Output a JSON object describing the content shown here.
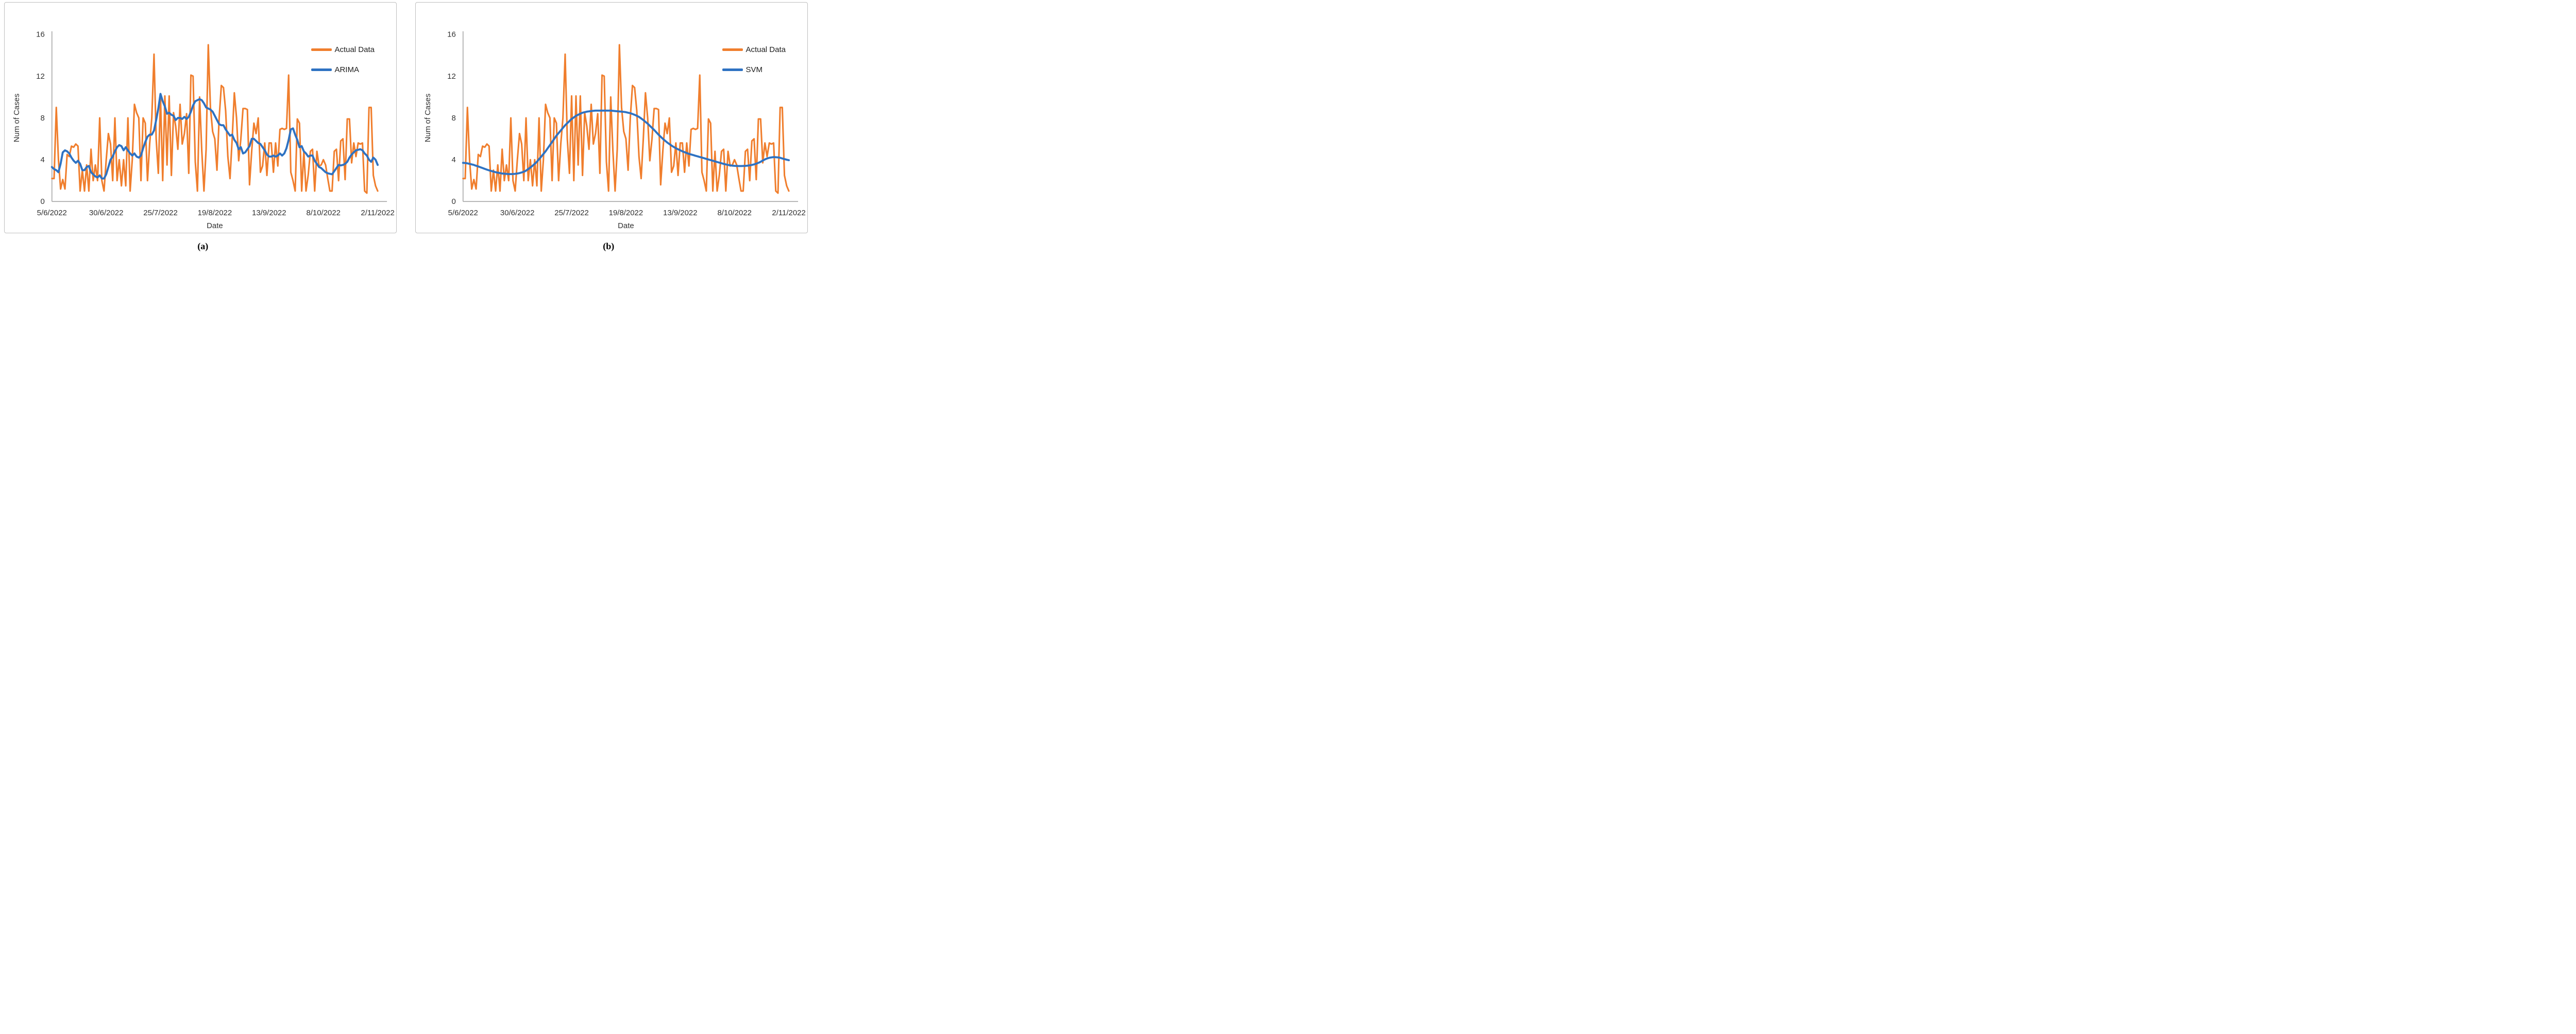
{
  "page": {
    "background": "#FFFFFF"
  },
  "colors": {
    "actual_line": "#F07E2D",
    "model_line": "#2E72C2",
    "axis_line": "#A6A6A6",
    "tick_text": "#303030",
    "panel_border": "#BFBFBF"
  },
  "captions": {
    "a": "(a)",
    "b": "(b)"
  },
  "chart_data": [
    {
      "type": "line",
      "panel": "a",
      "title": "",
      "xlabel": "Date",
      "ylabel": "Num of Cases",
      "ylim": [
        0,
        16
      ],
      "yticks": [
        0,
        4,
        8,
        12,
        16
      ],
      "xtick_days": [
        0,
        25,
        50,
        75,
        100,
        125,
        150
      ],
      "xtick_labels": [
        "5/6/2022",
        "30/6/2022",
        "25/7/2022",
        "19/8/2022",
        "13/9/2022",
        "8/10/2022",
        "2/11/2022"
      ],
      "x_description": "daily number of cases, 5/6/2022 to 2/11/2022 (151 days)",
      "grid": false,
      "legend_position": "top-right",
      "series": [
        {
          "name": "Actual Data",
          "color": "#F07E2D",
          "values": [
            2.2,
            2.2,
            9,
            4,
            1.2,
            2.1,
            1.2,
            4.5,
            4.3,
            5.3,
            5.2,
            5.5,
            5.3,
            1,
            3,
            1,
            3.5,
            1,
            5,
            2,
            3.5,
            2,
            8,
            2,
            1,
            4,
            6.5,
            5.5,
            2,
            8,
            2,
            4,
            1.5,
            4,
            1.5,
            8,
            1,
            4,
            9.3,
            8.5,
            8,
            2,
            8,
            7.5,
            2,
            5.5,
            8,
            14.1,
            6,
            2.7,
            10.1,
            2,
            10.1,
            3.5,
            10.1,
            2.5,
            8.5,
            7.2,
            5,
            9.3,
            5.5,
            6.5,
            8.4,
            2.7,
            12.1,
            12,
            3.8,
            1,
            10,
            4.9,
            1,
            5,
            15,
            9,
            6.7,
            6,
            3,
            8,
            11.1,
            10.9,
            8.7,
            4.3,
            2.2,
            6,
            10.4,
            8,
            3.9,
            6,
            8.9,
            8.9,
            8.8,
            1.6,
            4.9,
            7.5,
            6.5,
            8,
            2.8,
            3.4,
            5.6,
            2.5,
            5.6,
            5.6,
            2.8,
            5.6,
            3.4,
            6.9,
            7,
            6.9,
            7,
            12.1,
            2.8,
            2,
            1,
            7.9,
            7.5,
            1,
            4.8,
            1,
            2.5,
            4.8,
            5,
            1,
            4.8,
            3.4,
            3.5,
            4,
            3.5,
            2.2,
            1,
            1,
            4.8,
            5,
            2,
            5.8,
            6,
            2.1,
            7.9,
            7.9,
            3.7,
            5.6,
            4.3,
            5.6,
            5.5,
            5.6,
            1,
            0.8,
            9,
            9,
            2.5,
            1.5,
            1
          ]
        },
        {
          "name": "ARIMA",
          "color": "#2E72C2",
          "values": [
            3.3,
            3.1,
            3.0,
            2.8,
            3.6,
            4.7,
            4.9,
            4.8,
            4.6,
            4.2,
            3.9,
            3.7,
            3.9,
            3.6,
            3.0,
            3.0,
            3.3,
            3.4,
            2.8,
            2.6,
            2.4,
            2.3,
            2.5,
            2.2,
            2.2,
            2.6,
            3.3,
            4.0,
            4.3,
            4.8,
            5.2,
            5.4,
            5.3,
            4.9,
            5.2,
            4.9,
            4.6,
            4.4,
            4.6,
            4.3,
            4.2,
            4.4,
            5.1,
            5.7,
            6.2,
            6.4,
            6.4,
            6.8,
            7.8,
            8.9,
            10.3,
            9.6,
            9.1,
            8.4,
            8.5,
            8.3,
            8.2,
            7.8,
            8.0,
            8.0,
            7.9,
            8.1,
            7.9,
            8.1,
            8.6,
            9.2,
            9.6,
            9.7,
            9.8,
            9.7,
            9.4,
            9.0,
            8.9,
            8.8,
            8.6,
            8.2,
            7.8,
            7.4,
            7.3,
            7.3,
            6.9,
            6.6,
            6.3,
            6.4,
            5.9,
            5.6,
            5.0,
            5.2,
            4.6,
            4.7,
            5.0,
            5.3,
            6.0,
            6.0,
            5.8,
            5.6,
            5.5,
            5.2,
            4.9,
            4.5,
            4.3,
            4.3,
            4.4,
            4.3,
            4.4,
            4.6,
            4.4,
            4.6,
            5.1,
            5.9,
            6.9,
            7.0,
            6.4,
            5.9,
            5.2,
            5.3,
            4.8,
            4.6,
            4.3,
            4.4,
            4.4,
            3.9,
            3.6,
            3.3,
            3.2,
            3.0,
            2.8,
            2.7,
            2.65,
            2.6,
            2.9,
            3.2,
            3.5,
            3.45,
            3.5,
            3.6,
            3.8,
            4.2,
            4.5,
            4.7,
            4.9,
            4.95,
            5.0,
            4.9,
            4.6,
            4.4,
            4.0,
            3.8,
            4.2,
            4.0,
            3.5
          ]
        }
      ]
    },
    {
      "type": "line",
      "panel": "b",
      "title": "",
      "xlabel": "Date",
      "ylabel": "Num of Cases",
      "ylim": [
        0,
        16
      ],
      "yticks": [
        0,
        4,
        8,
        12,
        16
      ],
      "xtick_days": [
        0,
        25,
        50,
        75,
        100,
        125,
        150
      ],
      "xtick_labels": [
        "5/6/2022",
        "30/6/2022",
        "25/7/2022",
        "19/8/2022",
        "13/9/2022",
        "8/10/2022",
        "2/11/2022"
      ],
      "x_description": "daily number of cases, 5/6/2022 to 2/11/2022 (151 days)",
      "grid": false,
      "legend_position": "top-right",
      "series": [
        {
          "name": "Actual Data",
          "color": "#F07E2D",
          "values": [
            2.2,
            2.2,
            9,
            4,
            1.2,
            2.1,
            1.2,
            4.5,
            4.3,
            5.3,
            5.2,
            5.5,
            5.3,
            1,
            3,
            1,
            3.5,
            1,
            5,
            2,
            3.5,
            2,
            8,
            2,
            1,
            4,
            6.5,
            5.5,
            2,
            8,
            2,
            4,
            1.5,
            4,
            1.5,
            8,
            1,
            4,
            9.3,
            8.5,
            8,
            2,
            8,
            7.5,
            2,
            5.5,
            8,
            14.1,
            6,
            2.7,
            10.1,
            2,
            10.1,
            3.5,
            10.1,
            2.5,
            8.5,
            7.2,
            5,
            9.3,
            5.5,
            6.5,
            8.4,
            2.7,
            12.1,
            12,
            3.8,
            1,
            10,
            4.9,
            1,
            5,
            15,
            9,
            6.7,
            6,
            3,
            8,
            11.1,
            10.9,
            8.7,
            4.3,
            2.2,
            6,
            10.4,
            8,
            3.9,
            6,
            8.9,
            8.9,
            8.8,
            1.6,
            4.9,
            7.5,
            6.5,
            8,
            2.8,
            3.4,
            5.6,
            2.5,
            5.6,
            5.6,
            2.8,
            5.6,
            3.4,
            6.9,
            7,
            6.9,
            7,
            12.1,
            2.8,
            2,
            1,
            7.9,
            7.5,
            1,
            4.8,
            1,
            2.5,
            4.8,
            5,
            1,
            4.8,
            3.4,
            3.5,
            4,
            3.5,
            2.2,
            1,
            1,
            4.8,
            5,
            2,
            5.8,
            6,
            2.1,
            7.9,
            7.9,
            3.7,
            5.6,
            4.3,
            5.6,
            5.5,
            5.6,
            1,
            0.8,
            9,
            9,
            2.5,
            1.5,
            1
          ]
        },
        {
          "name": "SVM",
          "color": "#2E72C2",
          "values": [
            3.7,
            3.68,
            3.65,
            3.6,
            3.55,
            3.5,
            3.42,
            3.35,
            3.28,
            3.2,
            3.12,
            3.05,
            2.98,
            2.92,
            2.86,
            2.8,
            2.76,
            2.72,
            2.68,
            2.66,
            2.64,
            2.62,
            2.62,
            2.63,
            2.65,
            2.68,
            2.72,
            2.78,
            2.85,
            2.95,
            3.1,
            3.25,
            3.42,
            3.6,
            3.8,
            4.05,
            4.3,
            4.55,
            4.8,
            5.1,
            5.4,
            5.7,
            6.0,
            6.3,
            6.55,
            6.8,
            7.05,
            7.3,
            7.5,
            7.7,
            7.9,
            8.05,
            8.2,
            8.3,
            8.4,
            8.5,
            8.55,
            8.6,
            8.63,
            8.66,
            8.68,
            8.7,
            8.7,
            8.7,
            8.7,
            8.7,
            8.7,
            8.7,
            8.7,
            8.68,
            8.66,
            8.64,
            8.62,
            8.6,
            8.58,
            8.55,
            8.5,
            8.45,
            8.38,
            8.3,
            8.2,
            8.1,
            7.95,
            7.8,
            7.62,
            7.45,
            7.25,
            7.05,
            6.85,
            6.62,
            6.4,
            6.2,
            6.0,
            5.82,
            5.65,
            5.5,
            5.35,
            5.22,
            5.1,
            5.0,
            4.9,
            4.8,
            4.72,
            4.64,
            4.56,
            4.5,
            4.44,
            4.38,
            4.32,
            4.26,
            4.2,
            4.14,
            4.08,
            4.02,
            3.96,
            3.9,
            3.84,
            3.78,
            3.72,
            3.66,
            3.6,
            3.55,
            3.5,
            3.46,
            3.43,
            3.41,
            3.4,
            3.39,
            3.39,
            3.4,
            3.41,
            3.43,
            3.46,
            3.5,
            3.55,
            3.62,
            3.7,
            3.8,
            3.92,
            4.03,
            4.12,
            4.18,
            4.22,
            4.25,
            4.24,
            4.22,
            4.18,
            4.12,
            4.06,
            4.0,
            3.95
          ]
        }
      ]
    }
  ]
}
